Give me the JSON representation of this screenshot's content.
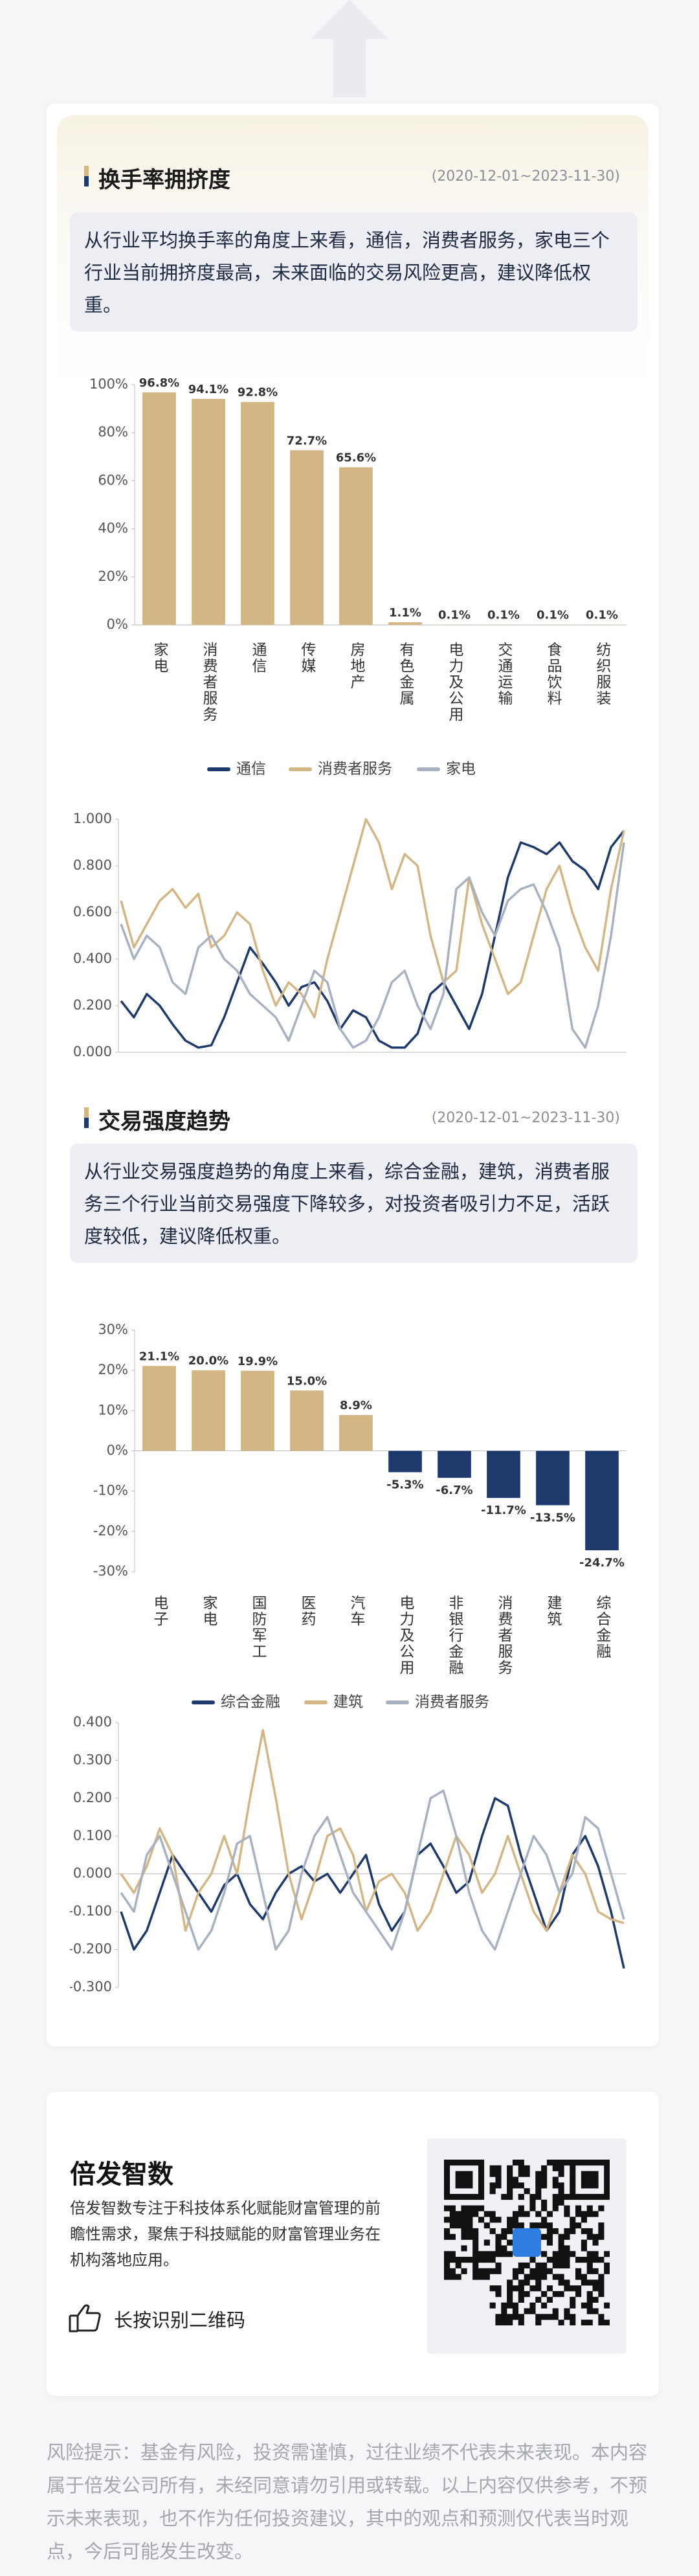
{
  "sections": [
    {
      "title": "换手率拥挤度",
      "period": "(2020-12-01~2023-11-30)",
      "description": "从行业平均换手率的角度上来看，通信，消费者服务，家电三个行业当前拥挤度最高，未来面临的交易风险更高，建议降低权重。"
    },
    {
      "title": "交易强度趋势",
      "period": "(2020-12-01~2023-11-30)",
      "description": "从行业交易强度趋势的角度上来看，综合金融，建筑，消费者服务三个行业当前交易强度下降较多，对投资者吸引力不足，活跃度较低，建议降低权重。"
    }
  ],
  "chart_data": [
    {
      "type": "bar",
      "categories": [
        "家电",
        "消费者服务",
        "通信",
        "传媒",
        "房地产",
        "有色金属",
        "电力及公用",
        "交通运输",
        "食品饮料",
        "纺织服装"
      ],
      "values": [
        96.8,
        94.1,
        92.8,
        72.7,
        65.6,
        1.1,
        0.1,
        0.1,
        0.1,
        0.1
      ],
      "value_labels": [
        "96.8%",
        "94.1%",
        "92.8%",
        "72.7%",
        "65.6%",
        "1.1%",
        "0.1%",
        "0.1%",
        "0.1%",
        "0.1%"
      ],
      "color": "#d3b683",
      "negative_color": "#1e3a6c",
      "ylim": [
        0,
        100
      ],
      "yticks": [
        {
          "value": 0,
          "label": "0%"
        },
        {
          "value": 20,
          "label": "20%"
        },
        {
          "value": 40,
          "label": "40%"
        },
        {
          "value": 60,
          "label": "60%"
        },
        {
          "value": 80,
          "label": "80%"
        },
        {
          "value": 100,
          "label": "100%"
        }
      ],
      "grid": false
    },
    {
      "type": "line",
      "legend": "top",
      "series": [
        {
          "name": "通信",
          "color": "#1e3a6c",
          "values": [
            0.22,
            0.15,
            0.25,
            0.2,
            0.12,
            0.05,
            0.02,
            0.03,
            0.15,
            0.3,
            0.45,
            0.38,
            0.3,
            0.2,
            0.28,
            0.3,
            0.22,
            0.1,
            0.18,
            0.15,
            0.05,
            0.02,
            0.02,
            0.08,
            0.25,
            0.3,
            0.2,
            0.1,
            0.25,
            0.5,
            0.75,
            0.9,
            0.88,
            0.85,
            0.9,
            0.82,
            0.78,
            0.7,
            0.88,
            0.95
          ]
        },
        {
          "name": "消费者服务",
          "color": "#d3b683",
          "values": [
            0.65,
            0.45,
            0.55,
            0.65,
            0.7,
            0.62,
            0.68,
            0.45,
            0.5,
            0.6,
            0.55,
            0.35,
            0.2,
            0.3,
            0.25,
            0.15,
            0.4,
            0.6,
            0.8,
            1.0,
            0.9,
            0.7,
            0.85,
            0.8,
            0.5,
            0.3,
            0.35,
            0.75,
            0.55,
            0.4,
            0.25,
            0.3,
            0.5,
            0.7,
            0.8,
            0.6,
            0.45,
            0.35,
            0.7,
            0.95
          ]
        },
        {
          "name": "家电",
          "color": "#a7b1c0",
          "values": [
            0.55,
            0.4,
            0.5,
            0.45,
            0.3,
            0.25,
            0.45,
            0.5,
            0.4,
            0.35,
            0.25,
            0.2,
            0.15,
            0.05,
            0.2,
            0.35,
            0.3,
            0.1,
            0.02,
            0.05,
            0.15,
            0.3,
            0.35,
            0.2,
            0.1,
            0.25,
            0.7,
            0.75,
            0.6,
            0.5,
            0.65,
            0.7,
            0.72,
            0.6,
            0.45,
            0.1,
            0.02,
            0.2,
            0.5,
            0.9
          ]
        }
      ],
      "ylim": [
        0,
        1
      ],
      "yticks": [
        {
          "value": 0,
          "label": "0.000"
        },
        {
          "value": 0.2,
          "label": "0.200"
        },
        {
          "value": 0.4,
          "label": "0.400"
        },
        {
          "value": 0.6,
          "label": "0.600"
        },
        {
          "value": 0.8,
          "label": "0.800"
        },
        {
          "value": 1,
          "label": "1.000"
        }
      ],
      "grid": false
    },
    {
      "type": "bar",
      "categories": [
        "电子",
        "家电",
        "国防军工",
        "医药",
        "汽车",
        "电力及公用",
        "非银行金融",
        "消费者服务",
        "建筑",
        "综合金融"
      ],
      "values": [
        21.1,
        20.0,
        19.9,
        15.0,
        8.9,
        -5.3,
        -6.7,
        -11.7,
        -13.5,
        -24.7
      ],
      "value_labels": [
        "21.1%",
        "20.0%",
        "19.9%",
        "15.0%",
        "8.9%",
        "-5.3%",
        "-6.7%",
        "-11.7%",
        "-13.5%",
        "-24.7%"
      ],
      "color": "#d3b683",
      "negative_color": "#1e3a6c",
      "ylim": [
        -30,
        30
      ],
      "yticks": [
        {
          "value": -30,
          "label": "-30%"
        },
        {
          "value": -20,
          "label": "-20%"
        },
        {
          "value": -10,
          "label": "-10%"
        },
        {
          "value": 0,
          "label": "0%"
        },
        {
          "value": 10,
          "label": "10%"
        },
        {
          "value": 20,
          "label": "20%"
        },
        {
          "value": 30,
          "label": "30%"
        }
      ],
      "grid": false
    },
    {
      "type": "line",
      "legend": "top",
      "series": [
        {
          "name": "综合金融",
          "color": "#1e3a6c",
          "values": [
            -0.1,
            -0.2,
            -0.15,
            -0.05,
            0.05,
            0.0,
            -0.05,
            -0.1,
            -0.03,
            0.0,
            -0.08,
            -0.12,
            -0.05,
            0.0,
            0.02,
            -0.02,
            0.0,
            -0.05,
            0.0,
            0.05,
            -0.08,
            -0.15,
            -0.1,
            0.05,
            0.08,
            0.02,
            -0.05,
            -0.02,
            0.1,
            0.2,
            0.18,
            0.05,
            -0.05,
            -0.15,
            -0.1,
            0.05,
            0.1,
            0.02,
            -0.1,
            -0.25
          ]
        },
        {
          "name": "建筑",
          "color": "#d3b683",
          "values": [
            0.0,
            -0.05,
            0.02,
            0.12,
            0.05,
            -0.15,
            -0.05,
            0.0,
            0.1,
            0.0,
            0.2,
            0.38,
            0.2,
            0.0,
            -0.12,
            -0.02,
            0.1,
            0.12,
            0.05,
            -0.1,
            -0.02,
            0.0,
            -0.05,
            -0.15,
            -0.1,
            0.0,
            0.1,
            0.05,
            -0.05,
            0.0,
            0.1,
            0.0,
            -0.1,
            -0.15,
            -0.05,
            0.05,
            0.0,
            -0.1,
            -0.12,
            -0.13
          ]
        },
        {
          "name": "消费者服务",
          "color": "#a7b1c0",
          "values": [
            -0.05,
            -0.1,
            0.05,
            0.1,
            0.0,
            -0.1,
            -0.2,
            -0.15,
            -0.05,
            0.08,
            0.1,
            -0.05,
            -0.2,
            -0.15,
            0.0,
            0.1,
            0.15,
            0.05,
            -0.05,
            -0.1,
            -0.15,
            -0.2,
            -0.1,
            0.05,
            0.2,
            0.22,
            0.1,
            -0.05,
            -0.15,
            -0.2,
            -0.1,
            0.0,
            0.1,
            0.05,
            -0.05,
            0.0,
            0.15,
            0.12,
            0.0,
            -0.12
          ]
        }
      ],
      "ylim": [
        -0.3,
        0.4
      ],
      "yticks": [
        {
          "value": -0.3,
          "label": "-0.300"
        },
        {
          "value": -0.2,
          "label": "-0.200"
        },
        {
          "value": -0.1,
          "label": "-0.100"
        },
        {
          "value": 0,
          "label": "0.000"
        },
        {
          "value": 0.1,
          "label": "0.100"
        },
        {
          "value": 0.2,
          "label": "0.200"
        },
        {
          "value": 0.3,
          "label": "0.300"
        },
        {
          "value": 0.4,
          "label": "0.400"
        }
      ],
      "grid": false
    }
  ],
  "footer": {
    "brand": "倍发智数",
    "description": "倍发智数专注于科技体系化赋能财富管理的前瞻性需求，聚焦于科技赋能的财富管理业务在机构落地应用。",
    "action": "长按识别二维码"
  },
  "disclaimer": "风险提示：基金有风险，投资需谨慎，过往业绩不代表未来表现。本内容属于倍发公司所有，未经同意请勿引用或转载。以上内容仅供参考，不预示未来表现，也不作为任何投资建议，其中的观点和预测仅代表当时观点，今后可能发生改变。"
}
